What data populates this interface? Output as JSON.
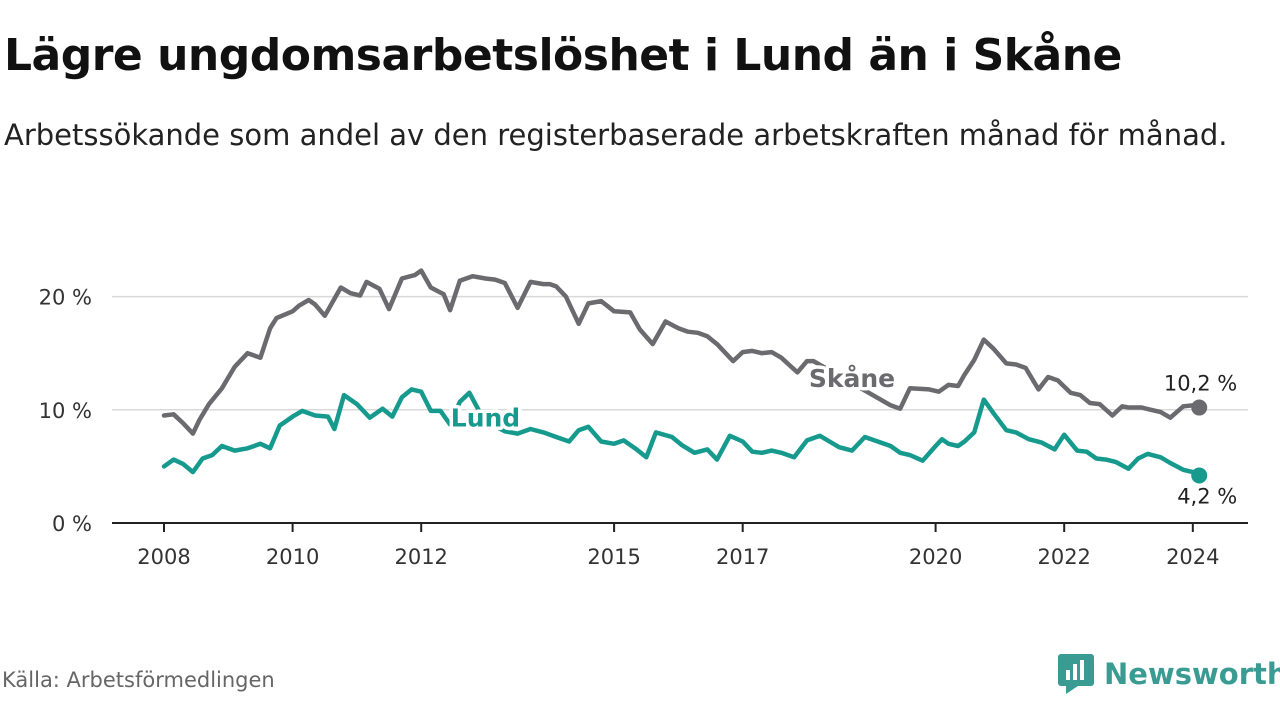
{
  "title": "Lägre ungdomsarbetslöshet i Lund än i Skåne",
  "subtitle": "Arbetssökande som andel av den registerbaserade arbetskraften månad för månad.",
  "source": "Källa: Arbetsförmedlingen",
  "brand": {
    "name": "Newsworthy",
    "icon": "newsworthy-logo-icon",
    "color": "#3a9b93"
  },
  "chart_data": {
    "type": "line",
    "title": "Lägre ungdomsarbetslöshet i Lund än i Skåne",
    "xlabel": "",
    "ylabel": "",
    "xlim": [
      2008,
      2024.1
    ],
    "ylim": [
      0,
      22
    ],
    "grid": true,
    "x_ticks": [
      {
        "value": 2008,
        "label": "2008"
      },
      {
        "value": 2010,
        "label": "2010"
      },
      {
        "value": 2012,
        "label": "2012"
      },
      {
        "value": 2015,
        "label": "2015"
      },
      {
        "value": 2017,
        "label": "2017"
      },
      {
        "value": 2020,
        "label": "2020"
      },
      {
        "value": 2022,
        "label": "2022"
      },
      {
        "value": 2024,
        "label": "2024"
      }
    ],
    "y_ticks": [
      {
        "value": 0,
        "label": "0 %"
      },
      {
        "value": 10,
        "label": "10 %"
      },
      {
        "value": 20,
        "label": "20 %"
      }
    ],
    "series": [
      {
        "name": "Skåne",
        "color": "#6b6b6f",
        "end_label": "10,2 %",
        "x": [
          2008.0,
          2008.15,
          2008.3,
          2008.45,
          2008.55,
          2008.7,
          2008.9,
          2009.1,
          2009.3,
          2009.5,
          2009.65,
          2009.75,
          2010.0,
          2010.1,
          2010.25,
          2010.35,
          2010.5,
          2010.75,
          2010.9,
          2011.05,
          2011.15,
          2011.35,
          2011.5,
          2011.7,
          2011.9,
          2012.0,
          2012.15,
          2012.35,
          2012.45,
          2012.6,
          2012.8,
          2013.0,
          2013.15,
          2013.3,
          2013.5,
          2013.7,
          2013.9,
          2014.0,
          2014.1,
          2014.25,
          2014.45,
          2014.6,
          2014.8,
          2015.0,
          2015.25,
          2015.4,
          2015.6,
          2015.8,
          2016.0,
          2016.15,
          2016.3,
          2016.45,
          2016.6,
          2016.85,
          2017.0,
          2017.15,
          2017.3,
          2017.45,
          2017.6,
          2017.85,
          2018.0,
          2018.1,
          2019.3,
          2019.45,
          2019.6,
          2019.9,
          2020.05,
          2020.2,
          2020.35,
          2020.45,
          2020.6,
          2020.75,
          2020.9,
          2021.1,
          2021.25,
          2021.4,
          2021.6,
          2021.75,
          2021.9,
          2022.1,
          2022.25,
          2022.4,
          2022.55,
          2022.75,
          2022.9,
          2023.0,
          2023.2,
          2023.35,
          2023.5,
          2023.65,
          2023.85,
          2024.0,
          2024.1
        ],
        "values": [
          9.5,
          9.6,
          8.8,
          7.9,
          9.1,
          10.5,
          11.9,
          13.8,
          15.0,
          14.6,
          17.2,
          18.1,
          18.7,
          19.2,
          19.7,
          19.3,
          18.3,
          20.8,
          20.3,
          20.1,
          21.3,
          20.7,
          18.9,
          21.6,
          21.9,
          22.3,
          20.8,
          20.2,
          18.8,
          21.4,
          21.8,
          21.6,
          21.5,
          21.2,
          19.0,
          21.3,
          21.1,
          21.1,
          20.9,
          20.0,
          17.6,
          19.4,
          19.6,
          18.7,
          18.6,
          17.1,
          15.8,
          17.8,
          17.2,
          16.9,
          16.8,
          16.5,
          15.8,
          14.3,
          15.1,
          15.2,
          15.0,
          15.1,
          14.6,
          13.3,
          14.3,
          14.3,
          10.4,
          10.1,
          11.9,
          11.8,
          11.6,
          12.2,
          12.1,
          13.1,
          14.4,
          16.2,
          15.4,
          14.1,
          14.0,
          13.7,
          11.8,
          12.9,
          12.6,
          11.5,
          11.3,
          10.6,
          10.5,
          9.5,
          10.3,
          10.2,
          10.2,
          10.0,
          9.8,
          9.3,
          10.3,
          10.4,
          10.2
        ]
      },
      {
        "name": "Lund",
        "color": "#179a8e",
        "end_label": "4,2 %",
        "x": [
          2008.0,
          2008.15,
          2008.3,
          2008.45,
          2008.6,
          2008.75,
          2008.9,
          2009.1,
          2009.3,
          2009.5,
          2009.65,
          2009.8,
          2010.0,
          2010.15,
          2010.35,
          2010.55,
          2010.65,
          2010.8,
          2011.0,
          2011.2,
          2011.4,
          2011.55,
          2011.7,
          2011.85,
          2012.0,
          2012.15,
          2012.3,
          2012.45,
          2012.6,
          2012.75,
          2012.9,
          2013.1,
          2013.3,
          2013.5,
          2013.7,
          2013.9,
          2014.1,
          2014.3,
          2014.45,
          2014.6,
          2014.8,
          2015.0,
          2015.15,
          2015.35,
          2015.5,
          2015.65,
          2015.9,
          2016.05,
          2016.25,
          2016.45,
          2016.6,
          2016.8,
          2017.0,
          2017.15,
          2017.3,
          2017.45,
          2017.6,
          2017.8,
          2018.0,
          2018.2,
          2018.35,
          2018.5,
          2018.7,
          2018.9,
          2019.1,
          2019.3,
          2019.45,
          2019.6,
          2019.8,
          2020.0,
          2020.1,
          2020.2,
          2020.35,
          2020.45,
          2020.6,
          2020.75,
          2020.9,
          2021.1,
          2021.25,
          2021.45,
          2021.65,
          2021.85,
          2022.0,
          2022.2,
          2022.35,
          2022.5,
          2022.65,
          2022.8,
          2023.0,
          2023.15,
          2023.3,
          2023.5,
          2023.65,
          2023.85,
          2024.0,
          2024.1
        ],
        "values": [
          5.0,
          5.6,
          5.2,
          4.5,
          5.7,
          6.0,
          6.8,
          6.4,
          6.6,
          7.0,
          6.6,
          8.6,
          9.4,
          9.9,
          9.5,
          9.4,
          8.3,
          11.3,
          10.5,
          9.3,
          10.1,
          9.4,
          11.1,
          11.8,
          11.6,
          9.9,
          9.9,
          8.7,
          10.7,
          11.5,
          9.9,
          8.7,
          8.1,
          7.9,
          8.3,
          8.0,
          7.6,
          7.2,
          8.2,
          8.5,
          7.2,
          7.0,
          7.3,
          6.5,
          5.8,
          8.0,
          7.6,
          6.9,
          6.2,
          6.5,
          5.6,
          7.7,
          7.2,
          6.3,
          6.2,
          6.4,
          6.2,
          5.8,
          7.3,
          7.7,
          7.2,
          6.7,
          6.4,
          7.6,
          7.2,
          6.8,
          6.2,
          6.0,
          5.5,
          6.8,
          7.4,
          7.0,
          6.8,
          7.2,
          8.0,
          10.9,
          9.7,
          8.2,
          8.0,
          7.4,
          7.1,
          6.5,
          7.8,
          6.4,
          6.3,
          5.7,
          5.6,
          5.4,
          4.8,
          5.7,
          6.1,
          5.8,
          5.3,
          4.7,
          4.5,
          4.2
        ]
      }
    ],
    "annotations": [
      {
        "text": "Skåne",
        "x": 2018.7,
        "y": 12.8,
        "series": "Skåne"
      },
      {
        "text": "Lund",
        "x": 2013.0,
        "y": 9.3,
        "series": "Lund"
      }
    ]
  }
}
